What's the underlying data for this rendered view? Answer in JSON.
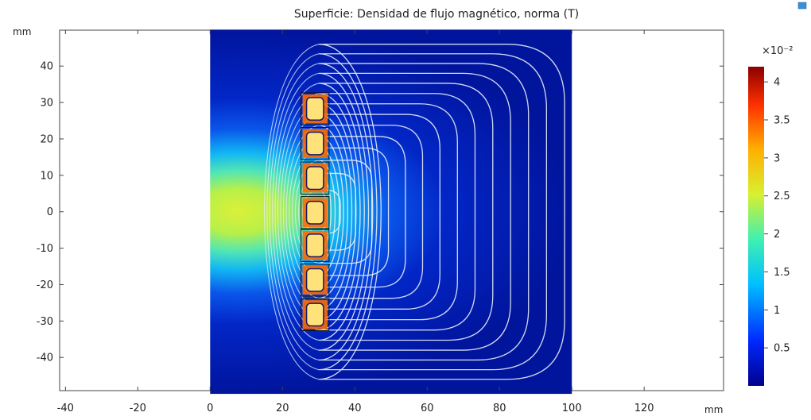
{
  "chart_data": {
    "type": "heatmap",
    "title": "Superficie: Densidad de flujo magnético, norma (T)",
    "x_unit": "mm",
    "y_unit": "mm",
    "xlim": [
      -42,
      102
    ],
    "ylim": [
      -50,
      50
    ],
    "x_ticks": [
      "-40",
      "-20",
      "0",
      "20",
      "40",
      "60",
      "80",
      "100",
      "120"
    ],
    "x_tick_values": [
      -40,
      -20,
      0,
      20,
      40,
      60,
      80,
      100,
      120
    ],
    "y_ticks": [
      "40",
      "30",
      "20",
      "10",
      "0",
      "-10",
      "-20",
      "-30",
      "-40"
    ],
    "y_tick_values": [
      40,
      30,
      20,
      10,
      0,
      -10,
      -20,
      -30,
      -40
    ],
    "domain": {
      "x": [
        0,
        100
      ],
      "y": [
        -50,
        50
      ]
    },
    "coils": [
      {
        "x": [
          26,
          32
        ],
        "y": [
          24.5,
          32
        ]
      },
      {
        "x": [
          26,
          32
        ],
        "y": [
          15,
          22.5
        ]
      },
      {
        "x": [
          26,
          32
        ],
        "y": [
          5.5,
          13
        ]
      },
      {
        "x": [
          26,
          32
        ],
        "y": [
          -4,
          3.5
        ]
      },
      {
        "x": [
          26,
          32
        ],
        "y": [
          -13,
          -5.5
        ]
      },
      {
        "x": [
          26,
          32
        ],
        "y": [
          -22.5,
          -15
        ]
      },
      {
        "x": [
          26,
          32
        ],
        "y": [
          -32,
          -24.5
        ]
      }
    ],
    "streamline_count": 14,
    "colorbar": {
      "multiplier": "×10⁻²",
      "range": [
        0,
        4.2
      ],
      "ticks": [
        "4",
        "3.5",
        "3",
        "2.5",
        "2",
        "1.5",
        "1",
        "0.5"
      ],
      "tick_values": [
        4,
        3.5,
        3,
        2.5,
        2,
        1.5,
        1,
        0.5
      ],
      "colors": [
        "#00008c",
        "#0033ff",
        "#00c0ff",
        "#40f0b0",
        "#d8f030",
        "#ffb000",
        "#ff3000",
        "#8c0000"
      ]
    }
  }
}
